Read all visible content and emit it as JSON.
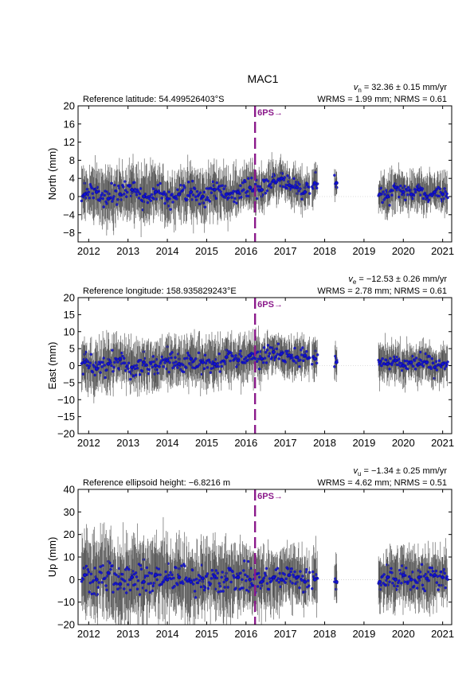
{
  "title": "MAC1",
  "x_ticks": [
    "2012",
    "2013",
    "2014",
    "2015",
    "2016",
    "2017",
    "2018",
    "2019",
    "2020",
    "2021"
  ],
  "colors": {
    "errorbar": "#4d4d4d",
    "point": "#1010d0",
    "event": "#8b1a8b",
    "zero": "#bbbbbb"
  },
  "chart_data": [
    {
      "type": "scatter",
      "component": "North",
      "ylabel": "North (mm)",
      "ylim": [
        -10,
        20
      ],
      "yticks": [
        -8,
        -4,
        0,
        4,
        8,
        12,
        16,
        20
      ],
      "header_left": "Reference latitude: 54.499526403°S",
      "header_right_1": "v_n = 32.36 ± 0.15 mm/yr",
      "header_right_2": "WRMS = 1.99 mm; NRMS = 0.61",
      "event_label": "6PS→",
      "event_x": 2016.23,
      "xlim": [
        2011.73,
        2021.23
      ],
      "series": [
        {
          "x": [
            2011.9,
            2012.2,
            2012.5,
            2012.8,
            2013.1,
            2013.4,
            2013.7,
            2014.0,
            2014.3,
            2014.6,
            2014.9,
            2015.2,
            2015.5,
            2015.8,
            2016.1,
            2016.4,
            2016.7,
            2016.9,
            2017.1,
            2017.3,
            2017.5,
            2017.75,
            2018.3,
            2019.4,
            2019.6,
            2019.8,
            2020.0,
            2020.2,
            2020.4,
            2020.6,
            2020.8,
            2021.0
          ],
          "y": [
            0.5,
            1.0,
            -0.5,
            0.5,
            1.5,
            0.0,
            1.0,
            -0.5,
            0.5,
            1.0,
            0.0,
            1.5,
            0.5,
            1.0,
            2.0,
            1.5,
            3.5,
            4.0,
            2.5,
            2.0,
            1.0,
            3.0,
            3.0,
            0.5,
            0.0,
            2.0,
            1.0,
            0.5,
            1.5,
            0.0,
            1.0,
            0.5
          ],
          "err": [
            4,
            4,
            4.5,
            4,
            4,
            4.5,
            4,
            4,
            4,
            4,
            4,
            4,
            4,
            3.5,
            3.5,
            3.5,
            3,
            3,
            3,
            3,
            3,
            3,
            2.5,
            3,
            3,
            3,
            3,
            3,
            3,
            3,
            3,
            3
          ]
        }
      ]
    },
    {
      "type": "scatter",
      "component": "East",
      "ylabel": "East (mm)",
      "ylim": [
        -20,
        20
      ],
      "yticks": [
        -20,
        -15,
        -10,
        -5,
        0,
        5,
        10,
        15,
        20
      ],
      "header_left": "Reference longitude: 158.935829243°E",
      "header_right_1": "v_e = −12.53 ± 0.26 mm/yr",
      "header_right_2": "WRMS = 2.78 mm; NRMS = 0.61",
      "event_label": "6PS→",
      "event_x": 2016.23,
      "xlim": [
        2011.73,
        2021.23
      ],
      "series": [
        {
          "x": [
            2011.9,
            2012.2,
            2012.5,
            2012.8,
            2013.1,
            2013.4,
            2013.7,
            2014.0,
            2014.3,
            2014.6,
            2014.9,
            2015.2,
            2015.5,
            2015.8,
            2016.1,
            2016.4,
            2016.7,
            2016.9,
            2017.1,
            2017.3,
            2017.5,
            2017.75,
            2018.3,
            2019.4,
            2019.6,
            2019.8,
            2020.0,
            2020.2,
            2020.4,
            2020.6,
            2020.8,
            2021.0
          ],
          "y": [
            1.0,
            -1.0,
            0.5,
            2.0,
            -0.5,
            1.0,
            0.0,
            1.5,
            0.5,
            2.0,
            1.0,
            0.5,
            2.5,
            1.5,
            3.0,
            2.0,
            4.0,
            3.5,
            3.0,
            2.5,
            3.0,
            2.0,
            1.0,
            1.0,
            0.5,
            1.5,
            0.0,
            1.0,
            0.5,
            1.0,
            -0.5,
            0.5
          ],
          "err": [
            5,
            5,
            5.5,
            5,
            5,
            5.5,
            5,
            5,
            5,
            5,
            5,
            5,
            5,
            4.5,
            4.5,
            4.5,
            4,
            4,
            4,
            4,
            4,
            4,
            3.5,
            4,
            4,
            4,
            4,
            4,
            4,
            4,
            4,
            4
          ]
        }
      ]
    },
    {
      "type": "scatter",
      "component": "Up",
      "ylabel": "Up (mm)",
      "ylim": [
        -20,
        40
      ],
      "yticks": [
        -20,
        -10,
        0,
        10,
        20,
        30,
        40
      ],
      "header_left": "Reference ellipsoid height: −6.8216 m",
      "header_right_1": "v_u = −1.34 ± 0.25 mm/yr",
      "header_right_2": "WRMS = 4.62 mm; NRMS = 0.51",
      "event_label": "6PS→",
      "event_x": 2016.23,
      "xlim": [
        2011.73,
        2021.23
      ],
      "series": [
        {
          "x": [
            2011.9,
            2012.2,
            2012.5,
            2012.8,
            2013.1,
            2013.4,
            2013.7,
            2014.0,
            2014.3,
            2014.6,
            2014.9,
            2015.2,
            2015.5,
            2015.8,
            2016.1,
            2016.4,
            2016.7,
            2016.9,
            2017.1,
            2017.3,
            2017.5,
            2017.75,
            2018.3,
            2019.4,
            2019.6,
            2019.8,
            2020.0,
            2020.2,
            2020.4,
            2020.6,
            2020.8,
            2021.0
          ],
          "y": [
            2.0,
            0.0,
            3.0,
            -2.0,
            1.0,
            -1.0,
            2.0,
            0.0,
            1.0,
            -1.0,
            0.5,
            1.5,
            0.0,
            1.0,
            0.0,
            -1.0,
            1.0,
            0.0,
            2.0,
            1.0,
            -1.0,
            0.0,
            -1.0,
            -1.0,
            1.0,
            0.0,
            2.0,
            0.0,
            1.0,
            0.5,
            2.0,
            1.0
          ],
          "err": [
            12,
            12,
            13,
            12,
            12,
            13,
            12,
            12,
            12,
            11,
            11,
            11,
            11,
            10,
            10,
            10,
            9,
            9,
            9,
            9,
            9,
            9,
            8,
            9,
            9,
            9,
            9,
            9,
            9,
            9,
            9,
            9
          ]
        }
      ]
    }
  ]
}
